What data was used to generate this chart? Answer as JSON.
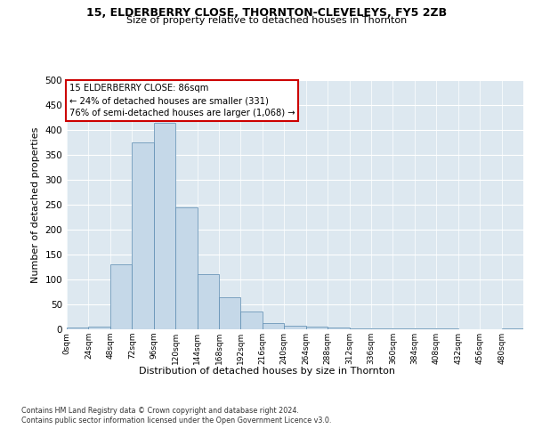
{
  "title1": "15, ELDERBERRY CLOSE, THORNTON-CLEVELEYS, FY5 2ZB",
  "title2": "Size of property relative to detached houses in Thornton",
  "xlabel": "Distribution of detached houses by size in Thornton",
  "ylabel": "Number of detached properties",
  "bin_edges": [
    0,
    24,
    48,
    72,
    96,
    120,
    144,
    168,
    192,
    216,
    240,
    264,
    288,
    312,
    336,
    360,
    384,
    408,
    432,
    456,
    480,
    504
  ],
  "bar_values": [
    3,
    5,
    130,
    375,
    415,
    245,
    110,
    65,
    35,
    13,
    7,
    5,
    3,
    2,
    1,
    1,
    1,
    1,
    0,
    0,
    2
  ],
  "bar_color": "#c5d8e8",
  "bar_edge_color": "#5a8ab0",
  "property_sqm": 86,
  "annotation_text": "15 ELDERBERRY CLOSE: 86sqm\n← 24% of detached houses are smaller (331)\n76% of semi-detached houses are larger (1,068) →",
  "annotation_box_color": "#ffffff",
  "annotation_box_edge_color": "#cc0000",
  "bg_color": "#ffffff",
  "plot_bg_color": "#dde8f0",
  "ylim": [
    0,
    500
  ],
  "yticks": [
    0,
    50,
    100,
    150,
    200,
    250,
    300,
    350,
    400,
    450,
    500
  ],
  "footnote": "Contains HM Land Registry data © Crown copyright and database right 2024.\nContains public sector information licensed under the Open Government Licence v3.0.",
  "tick_labels": [
    "0sqm",
    "24sqm",
    "48sqm",
    "72sqm",
    "96sqm",
    "120sqm",
    "144sqm",
    "168sqm",
    "192sqm",
    "216sqm",
    "240sqm",
    "264sqm",
    "288sqm",
    "312sqm",
    "336sqm",
    "360sqm",
    "384sqm",
    "408sqm",
    "432sqm",
    "456sqm",
    "480sqm"
  ]
}
